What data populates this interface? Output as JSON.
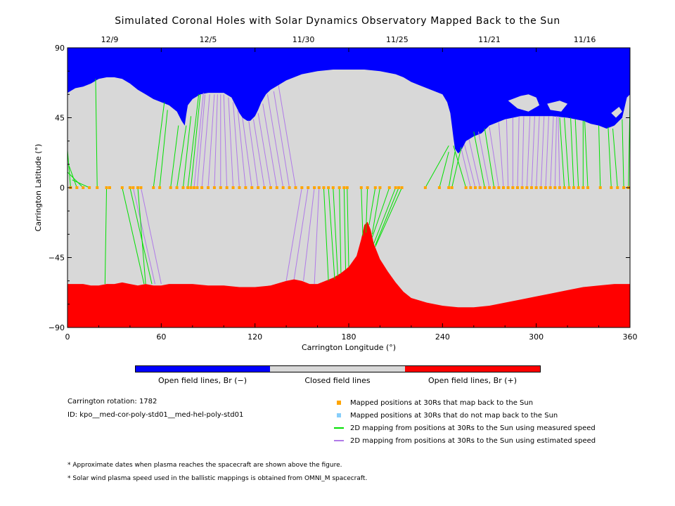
{
  "chart_data": {
    "type": "area",
    "title": "Simulated Coronal Holes with Solar Dynamics Observatory Mapped Back to the Sun",
    "xlabel": "Carrington Longitude (°)",
    "ylabel": "Carrington Latitude (°)",
    "xlim": [
      0,
      360
    ],
    "ylim": [
      -90,
      90
    ],
    "x_ticks": [
      0,
      60,
      120,
      180,
      240,
      300,
      360
    ],
    "y_ticks": [
      90,
      45,
      0,
      -45,
      -90
    ],
    "top_axis_dates": [
      {
        "label": "12/9",
        "lon": 27
      },
      {
        "label": "12/5",
        "lon": 90
      },
      {
        "label": "11/30",
        "lon": 151
      },
      {
        "label": "11/25",
        "lon": 211
      },
      {
        "label": "11/21",
        "lon": 270
      },
      {
        "label": "11/16",
        "lon": 331
      }
    ],
    "north_hole_boundary": [
      [
        0,
        61
      ],
      [
        5,
        64
      ],
      [
        10,
        65
      ],
      [
        15,
        67
      ],
      [
        20,
        70
      ],
      [
        25,
        71
      ],
      [
        30,
        71
      ],
      [
        35,
        70
      ],
      [
        40,
        67
      ],
      [
        45,
        63
      ],
      [
        50,
        60
      ],
      [
        55,
        57
      ],
      [
        60,
        55
      ],
      [
        65,
        53
      ],
      [
        70,
        49
      ],
      [
        73,
        43
      ],
      [
        75,
        40
      ],
      [
        76,
        47
      ],
      [
        77,
        53
      ],
      [
        80,
        57
      ],
      [
        85,
        60
      ],
      [
        90,
        61
      ],
      [
        100,
        61
      ],
      [
        105,
        58
      ],
      [
        108,
        52
      ],
      [
        110,
        48
      ],
      [
        112,
        45
      ],
      [
        115,
        43
      ],
      [
        117,
        43
      ],
      [
        120,
        46
      ],
      [
        122,
        50
      ],
      [
        124,
        55
      ],
      [
        127,
        60
      ],
      [
        130,
        63
      ],
      [
        135,
        66
      ],
      [
        140,
        69
      ],
      [
        150,
        73
      ],
      [
        160,
        75
      ],
      [
        170,
        76
      ],
      [
        180,
        76
      ],
      [
        190,
        76
      ],
      [
        200,
        75
      ],
      [
        210,
        73
      ],
      [
        215,
        71
      ],
      [
        220,
        68
      ],
      [
        225,
        66
      ],
      [
        230,
        64
      ],
      [
        235,
        62
      ],
      [
        240,
        60
      ],
      [
        243,
        55
      ],
      [
        245,
        48
      ],
      [
        246,
        40
      ],
      [
        247,
        32
      ],
      [
        248,
        25
      ],
      [
        250,
        22
      ],
      [
        252,
        24
      ],
      [
        255,
        30
      ],
      [
        260,
        33
      ],
      [
        265,
        35
      ],
      [
        270,
        40
      ],
      [
        280,
        44
      ],
      [
        290,
        46
      ],
      [
        300,
        46
      ],
      [
        310,
        46
      ],
      [
        320,
        45
      ],
      [
        330,
        43
      ],
      [
        335,
        41
      ],
      [
        340,
        40
      ],
      [
        345,
        38
      ],
      [
        350,
        40
      ],
      [
        355,
        45
      ],
      [
        358,
        58
      ],
      [
        360,
        60
      ]
    ],
    "north_closed_islands": [
      [
        [
          282,
          56
        ],
        [
          290,
          59
        ],
        [
          295,
          60
        ],
        [
          300,
          58
        ],
        [
          302,
          53
        ],
        [
          295,
          49
        ],
        [
          288,
          51
        ]
      ],
      [
        [
          307,
          54
        ],
        [
          315,
          56
        ],
        [
          320,
          54
        ],
        [
          316,
          49
        ],
        [
          309,
          50
        ]
      ],
      [
        [
          348,
          48
        ],
        [
          353,
          52
        ],
        [
          355,
          49
        ],
        [
          351,
          45
        ]
      ]
    ],
    "south_hole_boundary": [
      [
        0,
        -62
      ],
      [
        5,
        -62
      ],
      [
        10,
        -62
      ],
      [
        15,
        -63
      ],
      [
        20,
        -63
      ],
      [
        25,
        -62
      ],
      [
        30,
        -62
      ],
      [
        35,
        -61
      ],
      [
        40,
        -62
      ],
      [
        45,
        -63
      ],
      [
        50,
        -62
      ],
      [
        55,
        -63
      ],
      [
        60,
        -63
      ],
      [
        65,
        -62
      ],
      [
        70,
        -62
      ],
      [
        80,
        -62
      ],
      [
        90,
        -63
      ],
      [
        100,
        -63
      ],
      [
        110,
        -64
      ],
      [
        120,
        -64
      ],
      [
        130,
        -63
      ],
      [
        140,
        -60
      ],
      [
        145,
        -59
      ],
      [
        150,
        -60
      ],
      [
        155,
        -62
      ],
      [
        160,
        -62
      ],
      [
        165,
        -60
      ],
      [
        170,
        -58
      ],
      [
        175,
        -55
      ],
      [
        180,
        -51
      ],
      [
        185,
        -44
      ],
      [
        188,
        -33
      ],
      [
        190,
        -24
      ],
      [
        192,
        -22
      ],
      [
        194,
        -27
      ],
      [
        196,
        -36
      ],
      [
        200,
        -46
      ],
      [
        205,
        -54
      ],
      [
        210,
        -61
      ],
      [
        215,
        -67
      ],
      [
        220,
        -71
      ],
      [
        230,
        -74
      ],
      [
        240,
        -76
      ],
      [
        250,
        -77
      ],
      [
        260,
        -77
      ],
      [
        270,
        -76
      ],
      [
        280,
        -74
      ],
      [
        290,
        -72
      ],
      [
        300,
        -70
      ],
      [
        310,
        -68
      ],
      [
        320,
        -66
      ],
      [
        330,
        -64
      ],
      [
        340,
        -63
      ],
      [
        350,
        -62
      ],
      [
        360,
        -62
      ]
    ],
    "mapped_points_lon": [
      2,
      6,
      10,
      14,
      19,
      25,
      27,
      35,
      40,
      42,
      45,
      47,
      55,
      59,
      66,
      70,
      74,
      77,
      79,
      81,
      83,
      86,
      90,
      94,
      98,
      102,
      106,
      110,
      114,
      118,
      122,
      126,
      130,
      134,
      138,
      142,
      146,
      150,
      154,
      158,
      161,
      164,
      167,
      170,
      174,
      177,
      179,
      188,
      192,
      197,
      200,
      206,
      210,
      212,
      214,
      229,
      238,
      244,
      246,
      255,
      258,
      261,
      264,
      267,
      270,
      273,
      276,
      279,
      282,
      285,
      288,
      291,
      294,
      297,
      300,
      303,
      306,
      309,
      312,
      315,
      318,
      321,
      324,
      327,
      330,
      333,
      341,
      348,
      352,
      356,
      359
    ],
    "measured_mappings": [
      [
        2,
        0,
        0,
        24
      ],
      [
        6,
        0,
        1,
        14
      ],
      [
        10,
        0,
        0,
        10
      ],
      [
        14,
        0,
        3,
        5
      ],
      [
        19,
        0,
        18,
        70
      ],
      [
        25,
        0,
        24,
        -62
      ],
      [
        35,
        0,
        49,
        -62
      ],
      [
        40,
        0,
        54,
        -62
      ],
      [
        45,
        0,
        50,
        -62
      ],
      [
        55,
        0,
        62,
        55
      ],
      [
        59,
        0,
        64,
        50
      ],
      [
        66,
        0,
        71,
        40
      ],
      [
        70,
        0,
        76,
        40
      ],
      [
        74,
        0,
        79,
        46
      ],
      [
        77,
        0,
        84,
        60
      ],
      [
        79,
        0,
        85,
        60
      ],
      [
        164,
        0,
        167,
        -60
      ],
      [
        167,
        0,
        171,
        -59
      ],
      [
        170,
        0,
        173,
        -57
      ],
      [
        174,
        0,
        175,
        -55
      ],
      [
        177,
        0,
        178,
        -53
      ],
      [
        179,
        0,
        180,
        -51
      ],
      [
        188,
        0,
        189,
        -31
      ],
      [
        192,
        0,
        191,
        -29
      ],
      [
        197,
        0,
        193,
        -24
      ],
      [
        200,
        0,
        195,
        -30
      ],
      [
        206,
        0,
        195,
        -32
      ],
      [
        210,
        0,
        196,
        -36
      ],
      [
        212,
        0,
        197,
        -37
      ],
      [
        214,
        0,
        197,
        -38
      ],
      [
        229,
        0,
        244,
        27
      ],
      [
        238,
        0,
        244,
        23
      ],
      [
        244,
        0,
        248,
        23
      ],
      [
        246,
        0,
        252,
        26
      ],
      [
        255,
        0,
        247,
        27
      ],
      [
        267,
        0,
        260,
        36
      ],
      [
        273,
        0,
        267,
        38
      ],
      [
        318,
        0,
        315,
        45
      ],
      [
        321,
        0,
        318,
        45
      ],
      [
        324,
        0,
        322,
        45
      ],
      [
        327,
        0,
        325,
        44
      ],
      [
        330,
        0,
        330,
        43
      ],
      [
        333,
        0,
        331,
        43
      ],
      [
        341,
        0,
        340,
        40
      ],
      [
        348,
        0,
        346,
        39
      ],
      [
        352,
        0,
        349,
        38
      ],
      [
        356,
        0,
        355,
        44
      ],
      [
        359,
        0,
        360,
        55
      ]
    ],
    "estimated_mappings": [
      [
        42,
        0,
        56,
        -62
      ],
      [
        47,
        0,
        60,
        -62
      ],
      [
        81,
        0,
        87,
        61
      ],
      [
        83,
        0,
        88,
        60
      ],
      [
        86,
        0,
        91,
        60
      ],
      [
        90,
        0,
        94,
        60
      ],
      [
        94,
        0,
        96,
        60
      ],
      [
        98,
        0,
        98,
        60
      ],
      [
        102,
        0,
        100,
        60
      ],
      [
        106,
        0,
        103,
        58
      ],
      [
        110,
        0,
        106,
        55
      ],
      [
        114,
        0,
        109,
        50
      ],
      [
        118,
        0,
        112,
        45
      ],
      [
        122,
        0,
        116,
        43
      ],
      [
        126,
        0,
        119,
        44
      ],
      [
        130,
        0,
        122,
        48
      ],
      [
        134,
        0,
        125,
        54
      ],
      [
        138,
        0,
        128,
        60
      ],
      [
        142,
        0,
        132,
        62
      ],
      [
        146,
        0,
        135,
        66
      ],
      [
        150,
        0,
        140,
        -60
      ],
      [
        154,
        0,
        145,
        -59
      ],
      [
        158,
        0,
        151,
        -60
      ],
      [
        161,
        0,
        158,
        -62
      ],
      [
        258,
        0,
        252,
        25
      ],
      [
        261,
        0,
        254,
        28
      ],
      [
        264,
        0,
        257,
        31
      ],
      [
        270,
        0,
        263,
        36
      ],
      [
        276,
        0,
        270,
        39
      ],
      [
        279,
        0,
        276,
        42
      ],
      [
        282,
        0,
        281,
        44
      ],
      [
        285,
        0,
        285,
        45
      ],
      [
        288,
        0,
        289,
        46
      ],
      [
        291,
        0,
        292,
        46
      ],
      [
        294,
        0,
        296,
        46
      ],
      [
        297,
        0,
        299,
        46
      ],
      [
        300,
        0,
        302,
        46
      ],
      [
        303,
        0,
        305,
        46
      ],
      [
        306,
        0,
        308,
        46
      ],
      [
        309,
        0,
        311,
        46
      ],
      [
        312,
        0,
        313,
        46
      ],
      [
        315,
        0,
        314,
        46
      ]
    ],
    "colors": {
      "open_negative": "#0000ff",
      "closed": "#d8d8d8",
      "open_positive": "#ff0000",
      "mapped_point": "#ffa500",
      "unmapped_point": "#87cefa",
      "measured_speed": "#00e000",
      "estimated_speed": "#b07ae8"
    }
  },
  "colorbar": {
    "labels": [
      "Open field lines, Br (−)",
      "Closed field lines",
      "Open field lines, Br (+)"
    ],
    "colors": [
      "#0000ff",
      "#d8d8d8",
      "#ff0000"
    ]
  },
  "info": {
    "rotation": "Carrington rotation: 1782",
    "model_id": "ID: kpo__med-cor-poly-std01__med-hel-poly-std01"
  },
  "legend": [
    {
      "kind": "square",
      "color": "#ffa500",
      "label": "Mapped positions at 30Rs that map back to the Sun"
    },
    {
      "kind": "square",
      "color": "#87cefa",
      "label": "Mapped positions at 30Rs that do not map back to the Sun"
    },
    {
      "kind": "line",
      "color": "#00e000",
      "label": "2D mapping from positions at 30Rs to the Sun using measured speed"
    },
    {
      "kind": "line",
      "color": "#b07ae8",
      "label": "2D mapping from positions at 30Rs to the Sun using estimated speed"
    }
  ],
  "notes": [
    "* Approximate dates when plasma reaches the spacecraft are shown above the figure.",
    "* Solar wind plasma speed used in the ballistic mappings is obtained from OMNI_M spacecraft."
  ]
}
